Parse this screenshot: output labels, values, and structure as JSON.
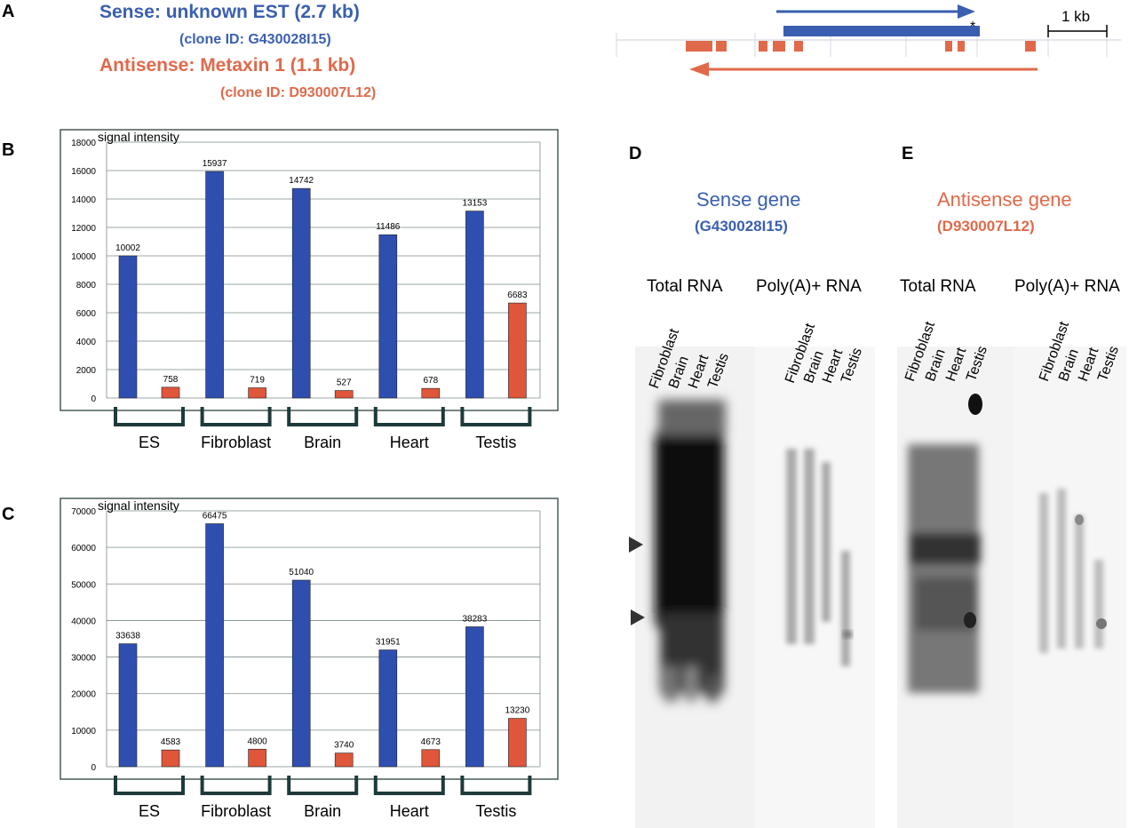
{
  "panels": {
    "a": "A",
    "b": "B",
    "c": "C",
    "d": "D",
    "e": "E"
  },
  "panel_a": {
    "sense_title": "Sense: unknown EST (2.7 kb)",
    "sense_clone": "(clone ID: G430028I15)",
    "antisense_title": "Antisense: Metaxin 1 (1.1 kb)",
    "antisense_clone": "(clone ID: D930007L12)",
    "scale_label": "1 kb",
    "asterisk": "*",
    "sense_color": "#3a5fb0",
    "antisense_color": "#e0694a"
  },
  "chart_data": [
    {
      "type": "bar",
      "panel": "B",
      "ylabel": "signal intensity",
      "ylim": [
        0,
        18000
      ],
      "yticks": [
        0,
        2000,
        4000,
        6000,
        8000,
        10000,
        12000,
        14000,
        16000,
        18000
      ],
      "categories": [
        "ES",
        "Fibroblast",
        "Brain",
        "Heart",
        "Testis"
      ],
      "series": [
        {
          "color": "#2f4fb0",
          "values": [
            10002,
            15937,
            14742,
            11486,
            13153
          ]
        },
        {
          "color": "#e0563a",
          "values": [
            758,
            719,
            527,
            678,
            6683
          ]
        }
      ],
      "grid": true
    },
    {
      "type": "bar",
      "panel": "C",
      "ylabel": "signal intensity",
      "ylim": [
        0,
        70000
      ],
      "yticks": [
        0,
        10000,
        20000,
        30000,
        40000,
        50000,
        60000,
        70000
      ],
      "categories": [
        "ES",
        "Fibroblast",
        "Brain",
        "Heart",
        "Testis"
      ],
      "series": [
        {
          "color": "#2f4fb0",
          "values": [
            33638,
            66475,
            51040,
            31951,
            38283
          ]
        },
        {
          "color": "#e0563a",
          "values": [
            4583,
            4800,
            3740,
            4673,
            13230
          ]
        }
      ],
      "grid": true
    }
  ],
  "panel_d": {
    "title": "Sense gene",
    "clone": "(G430028I15)",
    "total_label": "Total RNA",
    "polya_label": "Poly(A)+ RNA",
    "lanes": [
      "Fibroblast",
      "Brain",
      "Heart",
      "Testis"
    ]
  },
  "panel_e": {
    "title": "Antisense gene",
    "clone": "(D930007L12)",
    "total_label": "Total RNA",
    "polya_label": "Poly(A)+ RNA",
    "lanes": [
      "Fibroblast",
      "Brain",
      "Heart",
      "Testis"
    ]
  }
}
